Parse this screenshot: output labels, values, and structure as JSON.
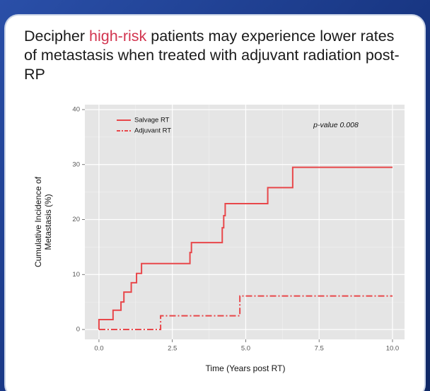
{
  "title_parts": [
    "Decipher ",
    "high-risk",
    " patients may experience lower rates of metastasis when treated with adjuvant radiation post-RP"
  ],
  "chart_data": {
    "type": "step",
    "x_label": "Time (Years post RT)",
    "y_label": [
      "Cumulative Incidence of",
      "Metastasis (%)"
    ],
    "annotation": "p-value 0.008",
    "xlim": [
      -0.48,
      10.41
    ],
    "ylim": [
      -1.8,
      40.9
    ],
    "xticks": [
      {
        "value": 0,
        "label": "0.0"
      },
      {
        "value": 2.5,
        "label": "2.5"
      },
      {
        "value": 5,
        "label": "5.0"
      },
      {
        "value": 7.5,
        "label": "7.5"
      },
      {
        "value": 10,
        "label": "10.0"
      }
    ],
    "yticks": [
      0,
      10,
      20,
      30,
      40
    ],
    "grid": true,
    "legend": "top-left",
    "series": [
      {
        "name": "Salvage RT",
        "color": "#e8474a",
        "dash": "solid",
        "x": [
          0,
          0,
          0.48,
          0.48,
          0.75,
          0.75,
          0.85,
          0.85,
          1.1,
          1.1,
          1.28,
          1.28,
          1.45,
          1.45,
          3.1,
          3.1,
          3.15,
          3.15,
          4.2,
          4.2,
          4.25,
          4.25,
          4.3,
          4.3,
          5.75,
          5.75,
          6.6,
          6.6,
          10
        ],
        "values": [
          0,
          1.8,
          1.8,
          3.5,
          3.5,
          5,
          5,
          6.8,
          6.8,
          8.5,
          8.5,
          10.2,
          10.2,
          12,
          12,
          14,
          14,
          15.8,
          15.8,
          18.5,
          18.5,
          20.7,
          20.7,
          22.9,
          22.9,
          25.8,
          25.8,
          29.5,
          29.5
        ]
      },
      {
        "name": "Adjuvant RT",
        "color": "#e8474a",
        "dash": "dashdot",
        "x": [
          0,
          2.1,
          2.1,
          4.8,
          4.8,
          10
        ],
        "values": [
          0,
          0,
          2.5,
          2.5,
          6.1,
          6.1
        ]
      }
    ]
  }
}
